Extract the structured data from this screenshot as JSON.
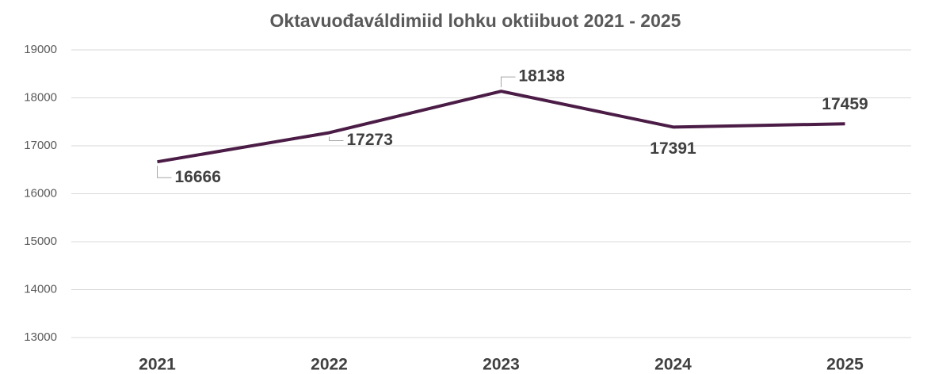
{
  "chart_data": {
    "type": "line",
    "title": "Oktavuođaváldimiid lohku oktiibuot 2021 - 2025",
    "categories": [
      "2021",
      "2022",
      "2023",
      "2024",
      "2025"
    ],
    "values": [
      16666,
      17273,
      18138,
      17391,
      17459
    ],
    "color": "#4b1c46",
    "ylim": [
      13000,
      19000
    ],
    "yticks": [
      13000,
      14000,
      15000,
      16000,
      17000,
      18000,
      19000
    ],
    "grid": true
  }
}
